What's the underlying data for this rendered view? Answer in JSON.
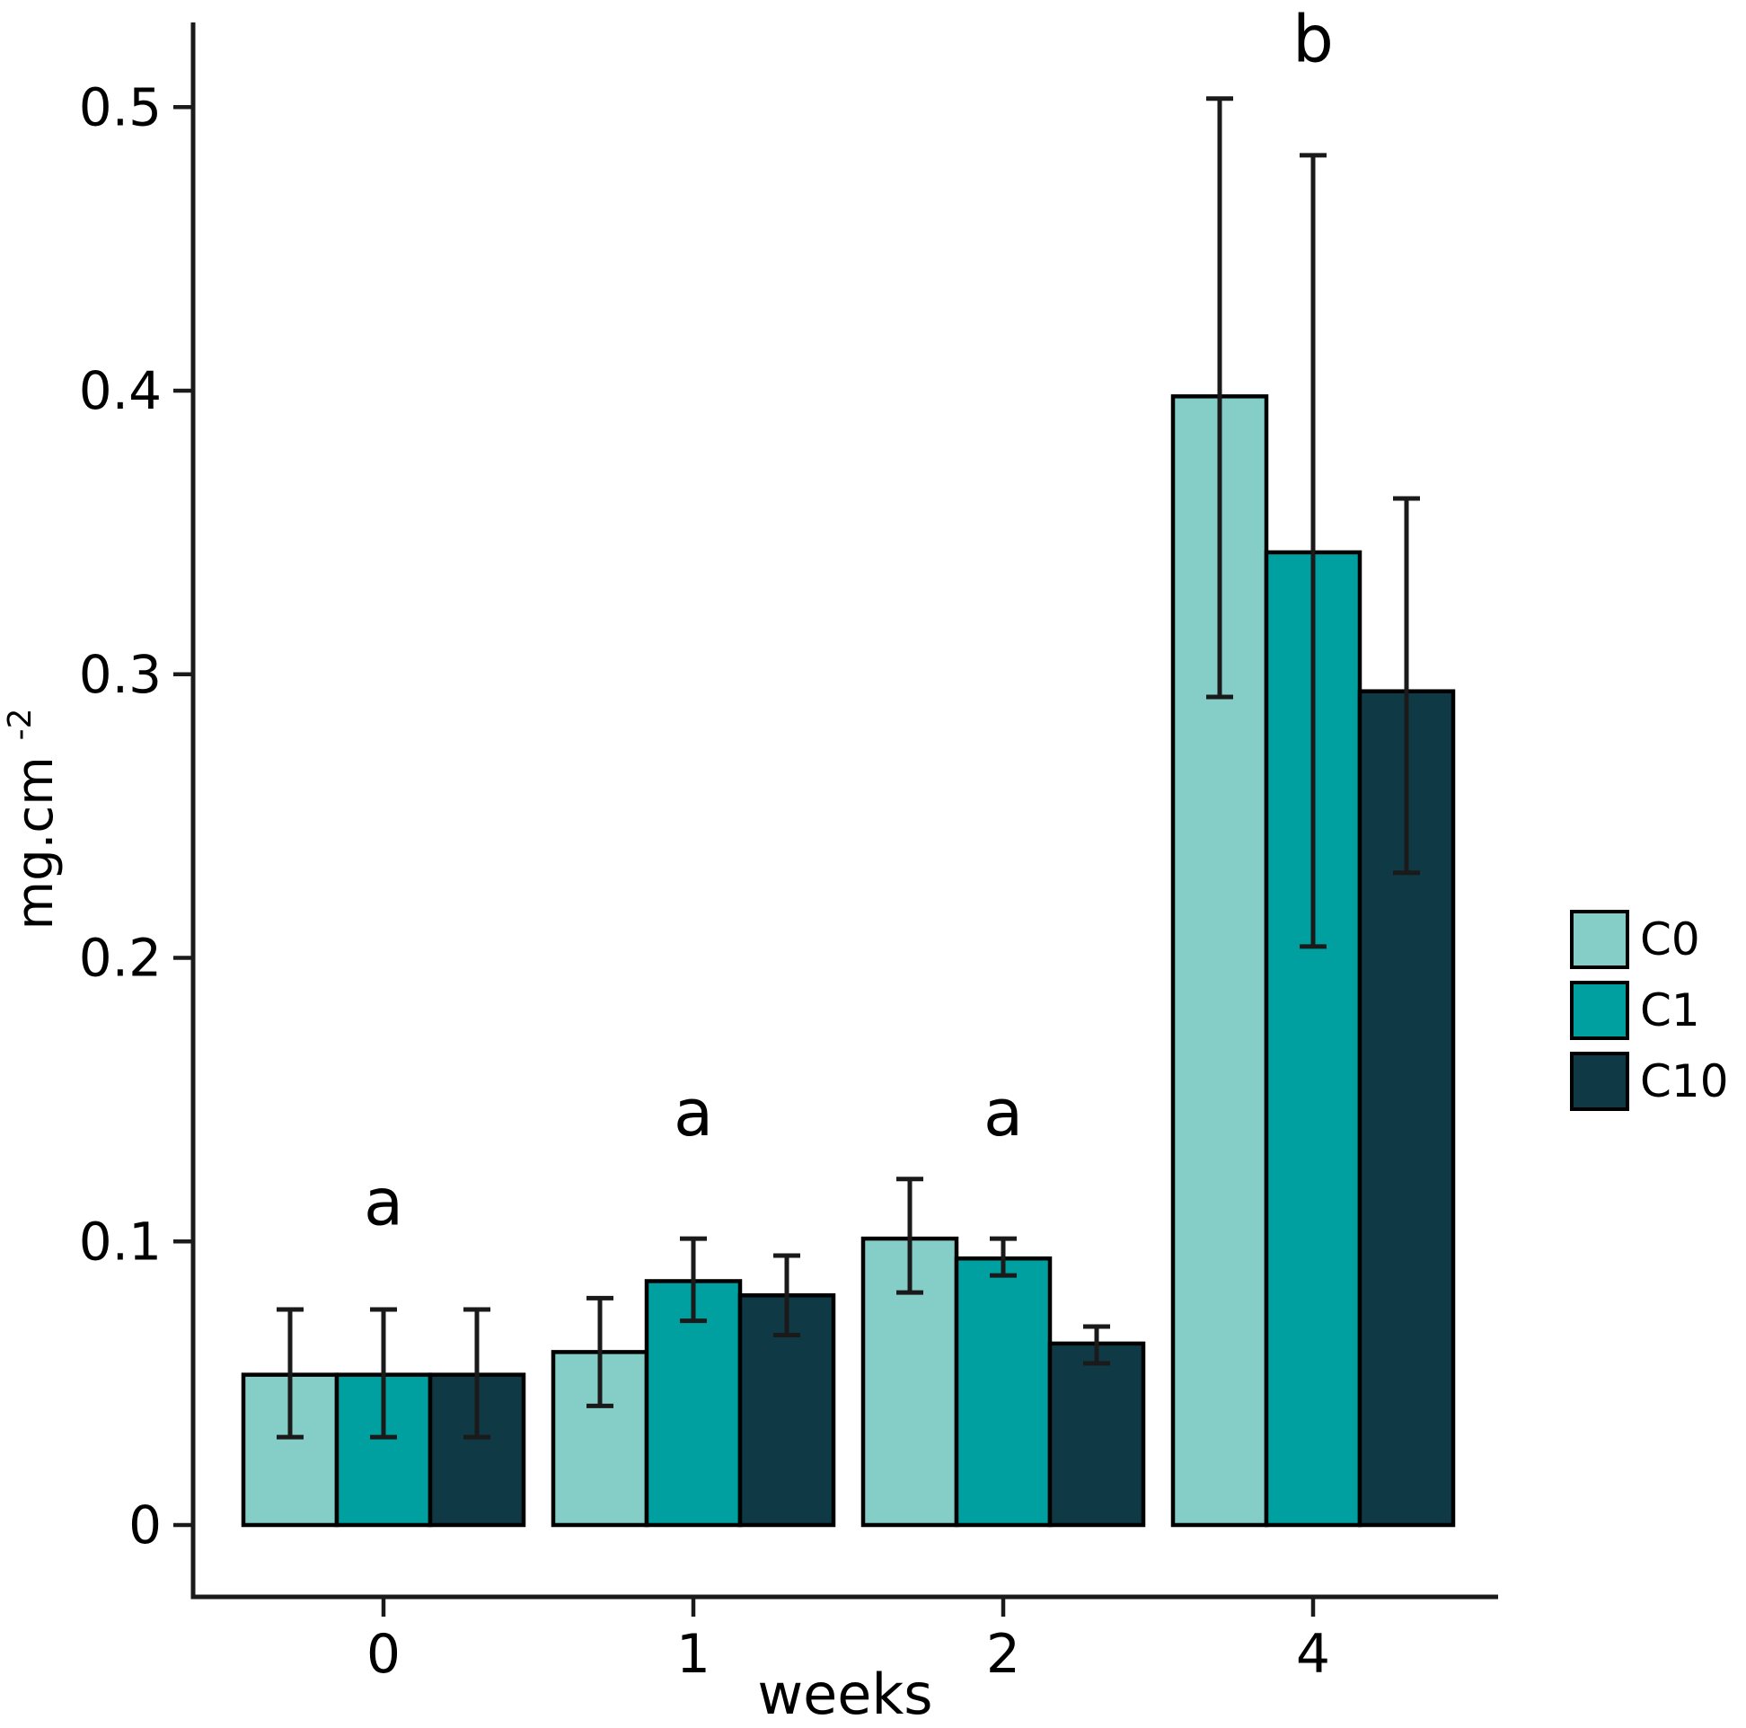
{
  "figure": {
    "background": "#ffffff",
    "axis_color": "#1a1a1a",
    "text_color": "#000000",
    "error_bar_color": "#1a1a1a",
    "bar_border_color": "#000000"
  },
  "chart_data": {
    "type": "bar",
    "title": "",
    "xlabel": "weeks",
    "ylabel": "mg.cm",
    "ylabel_superscript": "-2",
    "categories": [
      "0",
      "1",
      "2",
      "4"
    ],
    "y_ticks": [
      "0",
      "0.1",
      "0.2",
      "0.3",
      "0.4",
      "0.5"
    ],
    "y_tick_values": [
      0,
      0.1,
      0.2,
      0.3,
      0.4,
      0.5
    ],
    "ylim": [
      0,
      0.53
    ],
    "grid": false,
    "legend_position": "right",
    "error_bars": true,
    "series": [
      {
        "name": "C0",
        "color": "#85CEC8",
        "values": [
          0.053,
          0.061,
          0.101,
          0.398
        ],
        "err_low": [
          0.031,
          0.042,
          0.082,
          0.292
        ],
        "err_high": [
          0.076,
          0.08,
          0.122,
          0.503
        ]
      },
      {
        "name": "C1",
        "color": "#00A0A0",
        "values": [
          0.053,
          0.086,
          0.094,
          0.343
        ],
        "err_low": [
          0.031,
          0.072,
          0.088,
          0.204
        ],
        "err_high": [
          0.076,
          0.101,
          0.101,
          0.483
        ]
      },
      {
        "name": "C10",
        "color": "#0E3945",
        "values": [
          0.053,
          0.081,
          0.064,
          0.294
        ],
        "err_low": [
          0.031,
          0.067,
          0.057,
          0.23
        ],
        "err_high": [
          0.076,
          0.095,
          0.07,
          0.362
        ]
      }
    ],
    "annotations": [
      {
        "label": "a",
        "category": "0",
        "y": 0.106
      },
      {
        "label": "a",
        "category": "1",
        "y": 0.1375
      },
      {
        "label": "a",
        "category": "2",
        "y": 0.1375
      },
      {
        "label": "b",
        "category": "4",
        "y": 0.516
      }
    ]
  }
}
